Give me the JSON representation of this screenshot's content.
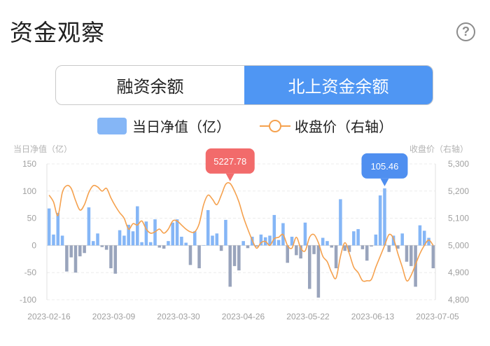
{
  "header": {
    "title": "资金观察",
    "help_icon": "?"
  },
  "tabs": [
    {
      "label": "融资余额",
      "active": false
    },
    {
      "label": "北上资金余额",
      "active": true
    }
  ],
  "legend": {
    "bar_label": "当日净值（亿）",
    "line_label": "收盘价（右轴）"
  },
  "colors": {
    "accent": "#4f96f3",
    "bar_positive": "#85b6f6",
    "bar_negative": "#99a4bc",
    "line": "#f5a14e",
    "tooltip_high": "#f26b6b",
    "tooltip_low": "#4f8ff0"
  },
  "chart_data": {
    "type": "bar+line",
    "ylabel": "当日净值（亿）",
    "y2label": "收盘价（右轴）",
    "ylim": [
      -100,
      150
    ],
    "y_ticks": [
      "150",
      "100",
      "50",
      "0",
      "-50",
      "-100"
    ],
    "y2lim": [
      4800,
      5300
    ],
    "y2_ticks": [
      "5,300",
      "5,200",
      "5,100",
      "5,000",
      "4,900",
      "4,800"
    ],
    "x_ticks": [
      "2023-02-16",
      "2023-03-09",
      "2023-03-30",
      "2023-04-26",
      "2023-05-22",
      "2023-06-13",
      "2023-07-05"
    ],
    "grid": true,
    "series": [
      {
        "name": "当日净值（亿）",
        "kind": "bar",
        "values": [
          68,
          20,
          60,
          18,
          -48,
          -22,
          -50,
          -20,
          -14,
          70,
          8,
          22,
          -3,
          -8,
          -42,
          -52,
          28,
          18,
          38,
          26,
          72,
          6,
          44,
          6,
          48,
          -4,
          -6,
          8,
          42,
          48,
          16,
          5,
          -36,
          26,
          -42,
          0,
          65,
          18,
          22,
          -10,
          47,
          -76,
          -38,
          -46,
          8,
          -5,
          16,
          -2,
          20,
          15,
          18,
          56,
          10,
          41,
          -32,
          16,
          -18,
          -24,
          42,
          -80,
          -16,
          -96,
          14,
          8,
          -4,
          -42,
          85,
          -10,
          -12,
          26,
          30,
          -7,
          -28,
          -2,
          20,
          92,
          105,
          -12,
          18,
          -6,
          22,
          -30,
          -38,
          -76,
          37,
          27,
          14,
          -42
        ]
      },
      {
        "name": "收盘价（右轴）",
        "kind": "line",
        "values": [
          5185,
          5160,
          5110,
          5195,
          5220,
          5210,
          5165,
          5130,
          5150,
          5195,
          5220,
          5215,
          5200,
          5210,
          5175,
          5145,
          5120,
          5100,
          5060,
          5080,
          5075,
          5090,
          5060,
          5045,
          5050,
          5060,
          5045,
          5060,
          5090,
          5090,
          5075,
          5060,
          5050,
          5050,
          5080,
          5150,
          5185,
          5170,
          5150,
          5185,
          5225,
          5228,
          5200,
          5160,
          5105,
          5060,
          5020,
          4990,
          5010,
          5015,
          5000,
          5025,
          5030,
          5040,
          5000,
          4990,
          5030,
          4990,
          4980,
          5030,
          5040,
          5010,
          4960,
          4940,
          4900,
          4880,
          4960,
          5010,
          4970,
          4920,
          4900,
          4870,
          4870,
          4875,
          4920,
          4960,
          5000,
          5040,
          5025,
          4970,
          4920,
          4870,
          4890,
          4930,
          4970,
          5000,
          5020,
          5000
        ]
      }
    ],
    "tooltips": [
      {
        "series": "收盘价（右轴）",
        "index": 41,
        "label": "5227.78"
      },
      {
        "series": "当日净值（亿）",
        "index": 76,
        "label": "105.46"
      }
    ]
  }
}
